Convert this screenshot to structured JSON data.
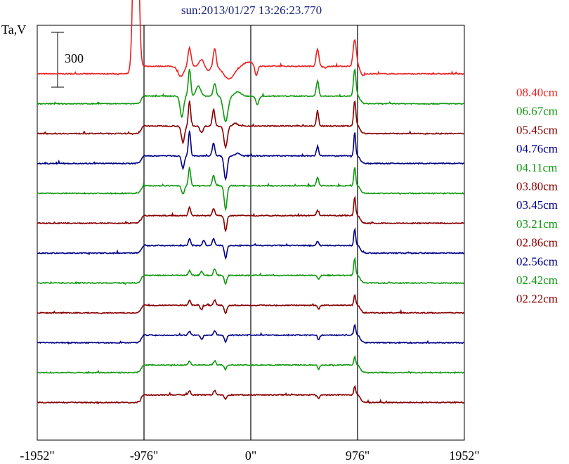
{
  "chart_data": {
    "type": "line",
    "title": "sun:2013/01/27 13:26:23.770",
    "ylabel": "Ta,V",
    "xlabel": "",
    "xlim": [
      -1952,
      1952
    ],
    "x_ticks": [
      -1952,
      -976,
      0,
      976,
      1952
    ],
    "x_tick_labels": [
      "-1952\"",
      "-976\"",
      "0\"",
      "976\"",
      "1952\""
    ],
    "vertical_markers": [
      -976,
      0,
      976
    ],
    "scale_bar": {
      "label": "300",
      "value": 300
    },
    "grid": false,
    "legend_position": "right",
    "colors": {
      "red": "#ee2222",
      "green": "#119911",
      "maroon": "#880000",
      "blue": "#000088"
    },
    "series": [
      {
        "name": "08.40cm",
        "color": "#ee2222",
        "offset": 0,
        "features": [
          {
            "x": -1050,
            "h": 3,
            "w": 30
          },
          {
            "x": -560,
            "h": 0.22,
            "w": 20
          },
          {
            "x": -640,
            "h": -0.12,
            "w": 40
          },
          {
            "x": -450,
            "h": 0.08,
            "w": 30
          },
          {
            "x": -330,
            "h": 0.22,
            "w": 18
          },
          {
            "x": -390,
            "h": -0.05,
            "w": 30
          },
          {
            "x": -200,
            "h": -0.15,
            "w": 70
          },
          {
            "x": -20,
            "h": 0.05,
            "w": 60
          },
          {
            "x": 50,
            "h": -0.12,
            "w": 18
          },
          {
            "x": 610,
            "h": 0.2,
            "w": 18
          },
          {
            "x": 680,
            "h": -0.02,
            "w": 20
          },
          {
            "x": 950,
            "h": 0.32,
            "w": 20
          },
          {
            "x": 1020,
            "h": -0.03,
            "w": 20
          }
        ]
      },
      {
        "name": "06.67cm",
        "color": "#119911",
        "offset": 1,
        "features": [
          {
            "x": -560,
            "h": 0.32,
            "w": 16
          },
          {
            "x": -630,
            "h": -0.25,
            "w": 22
          },
          {
            "x": -480,
            "h": 0.12,
            "w": 30
          },
          {
            "x": -330,
            "h": 0.15,
            "w": 18
          },
          {
            "x": -230,
            "h": -0.3,
            "w": 30
          },
          {
            "x": -120,
            "h": 0.05,
            "w": 40
          },
          {
            "x": 60,
            "h": -0.1,
            "w": 20
          },
          {
            "x": 610,
            "h": 0.18,
            "w": 16
          },
          {
            "x": 950,
            "h": 0.32,
            "w": 16
          }
        ]
      },
      {
        "name": "05.45cm",
        "color": "#880000",
        "offset": 2,
        "features": [
          {
            "x": -560,
            "h": 0.3,
            "w": 14
          },
          {
            "x": -620,
            "h": -0.2,
            "w": 20
          },
          {
            "x": -450,
            "h": -0.08,
            "w": 20
          },
          {
            "x": -340,
            "h": 0.2,
            "w": 16
          },
          {
            "x": -230,
            "h": -0.25,
            "w": 22
          },
          {
            "x": -140,
            "h": 0.03,
            "w": 30
          },
          {
            "x": 610,
            "h": 0.18,
            "w": 14
          },
          {
            "x": 950,
            "h": 0.3,
            "w": 14
          }
        ]
      },
      {
        "name": "04.76cm",
        "color": "#000088",
        "offset": 3,
        "features": [
          {
            "x": -560,
            "h": 0.3,
            "w": 14
          },
          {
            "x": -620,
            "h": -0.15,
            "w": 18
          },
          {
            "x": -340,
            "h": 0.15,
            "w": 16
          },
          {
            "x": -230,
            "h": -0.28,
            "w": 20
          },
          {
            "x": -120,
            "h": 0.03,
            "w": 30
          },
          {
            "x": 610,
            "h": 0.12,
            "w": 14
          },
          {
            "x": 950,
            "h": 0.28,
            "w": 12
          }
        ]
      },
      {
        "name": "04.11cm",
        "color": "#119911",
        "offset": 4,
        "features": [
          {
            "x": -560,
            "h": 0.22,
            "w": 14
          },
          {
            "x": -620,
            "h": -0.1,
            "w": 18
          },
          {
            "x": -340,
            "h": 0.12,
            "w": 16
          },
          {
            "x": -230,
            "h": -0.28,
            "w": 18
          },
          {
            "x": 610,
            "h": 0.1,
            "w": 14
          },
          {
            "x": 950,
            "h": 0.22,
            "w": 12
          }
        ]
      },
      {
        "name": "03.80cm",
        "color": "#880000",
        "offset": 5,
        "features": [
          {
            "x": -560,
            "h": 0.1,
            "w": 14
          },
          {
            "x": -340,
            "h": 0.08,
            "w": 16
          },
          {
            "x": -230,
            "h": -0.18,
            "w": 16
          },
          {
            "x": 610,
            "h": 0.06,
            "w": 14
          },
          {
            "x": 950,
            "h": 0.22,
            "w": 12
          }
        ]
      },
      {
        "name": "03.45cm",
        "color": "#000088",
        "offset": 6,
        "features": [
          {
            "x": -560,
            "h": 0.08,
            "w": 14
          },
          {
            "x": -430,
            "h": 0.06,
            "w": 16
          },
          {
            "x": -340,
            "h": 0.08,
            "w": 16
          },
          {
            "x": -230,
            "h": -0.15,
            "w": 16
          },
          {
            "x": 610,
            "h": 0.05,
            "w": 14
          },
          {
            "x": 950,
            "h": 0.2,
            "w": 12
          }
        ]
      },
      {
        "name": "03.21cm",
        "color": "#119911",
        "offset": 7,
        "features": [
          {
            "x": -560,
            "h": 0.06,
            "w": 14
          },
          {
            "x": -450,
            "h": 0.05,
            "w": 16
          },
          {
            "x": -330,
            "h": 0.08,
            "w": 16
          },
          {
            "x": -230,
            "h": -0.1,
            "w": 16
          },
          {
            "x": 620,
            "h": -0.05,
            "w": 14
          },
          {
            "x": 950,
            "h": 0.2,
            "w": 12
          }
        ]
      },
      {
        "name": "02.86cm",
        "color": "#880000",
        "offset": 8,
        "features": [
          {
            "x": -560,
            "h": 0.06,
            "w": 14
          },
          {
            "x": -450,
            "h": -0.05,
            "w": 16
          },
          {
            "x": -330,
            "h": 0.06,
            "w": 16
          },
          {
            "x": -230,
            "h": -0.1,
            "w": 16
          },
          {
            "x": 620,
            "h": -0.05,
            "w": 14
          },
          {
            "x": 950,
            "h": 0.12,
            "w": 12
          }
        ]
      },
      {
        "name": "02.56cm",
        "color": "#000088",
        "offset": 9,
        "features": [
          {
            "x": -560,
            "h": 0.05,
            "w": 14
          },
          {
            "x": -450,
            "h": -0.05,
            "w": 16
          },
          {
            "x": -330,
            "h": 0.05,
            "w": 16
          },
          {
            "x": -230,
            "h": -0.08,
            "w": 16
          },
          {
            "x": 620,
            "h": -0.05,
            "w": 14
          },
          {
            "x": 950,
            "h": 0.12,
            "w": 12
          }
        ]
      },
      {
        "name": "02.42cm",
        "color": "#119911",
        "offset": 10,
        "features": [
          {
            "x": -560,
            "h": 0.05,
            "w": 14
          },
          {
            "x": -330,
            "h": 0.05,
            "w": 16
          },
          {
            "x": -230,
            "h": -0.05,
            "w": 16
          },
          {
            "x": 620,
            "h": -0.05,
            "w": 14
          },
          {
            "x": 950,
            "h": 0.1,
            "w": 12
          }
        ]
      },
      {
        "name": "02.22cm",
        "color": "#880000",
        "offset": 11,
        "features": [
          {
            "x": -560,
            "h": 0.05,
            "w": 14
          },
          {
            "x": -330,
            "h": 0.05,
            "w": 16
          },
          {
            "x": -230,
            "h": -0.05,
            "w": 16
          },
          {
            "x": 620,
            "h": -0.04,
            "w": 14
          },
          {
            "x": 950,
            "h": 0.1,
            "w": 12
          }
        ]
      }
    ]
  }
}
